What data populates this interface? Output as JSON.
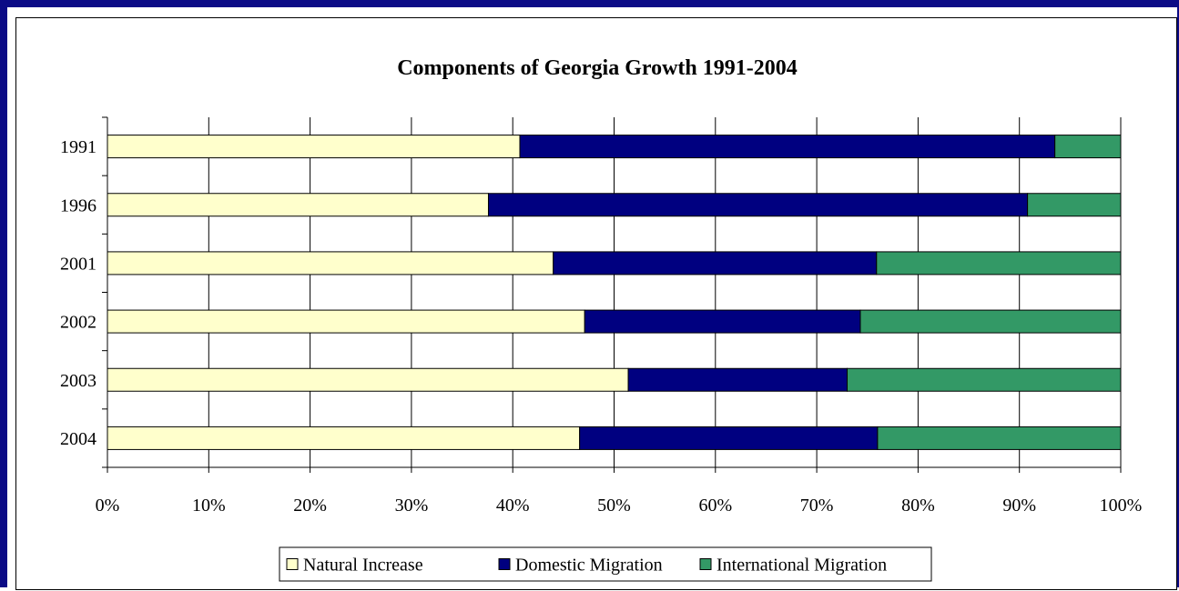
{
  "chart_data": {
    "type": "bar",
    "orientation": "horizontal",
    "stacked": "percent",
    "title": "Components of Georgia Growth 1991-2004",
    "categories": [
      "1991",
      "1996",
      "2001",
      "2002",
      "2003",
      "2004"
    ],
    "series": [
      {
        "name": "Natural Increase",
        "color": "#ffffcc",
        "values": [
          40.7,
          37.6,
          44.0,
          47.1,
          51.4,
          46.6
        ]
      },
      {
        "name": "Domestic Migration",
        "color": "#000080",
        "values": [
          52.8,
          53.2,
          31.9,
          27.2,
          21.6,
          29.4
        ]
      },
      {
        "name": "International Migration",
        "color": "#339966",
        "values": [
          6.5,
          9.2,
          24.1,
          25.7,
          27.0,
          24.0
        ]
      }
    ],
    "x_ticks": [
      "0%",
      "10%",
      "20%",
      "30%",
      "40%",
      "50%",
      "60%",
      "70%",
      "80%",
      "90%",
      "100%"
    ],
    "xlim": [
      0,
      100
    ],
    "xgrid": true,
    "legend_position": "bottom"
  }
}
